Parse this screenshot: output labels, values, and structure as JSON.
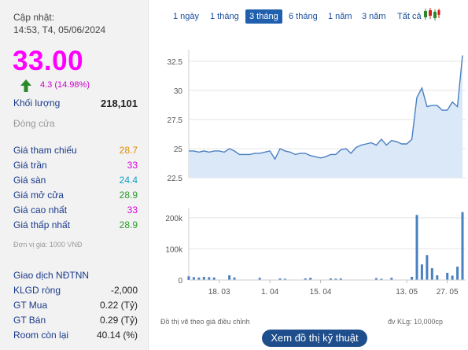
{
  "update": {
    "label": "Cập nhật:",
    "time": "14:53, T4, 05/06/2024"
  },
  "price": {
    "value": "33.00",
    "change": "4.3 (14.98%)",
    "direction": "up",
    "color": "#ff00ff"
  },
  "volume": {
    "label": "Khối lượng",
    "value": "218,101"
  },
  "session_status": "Đóng cửa",
  "stats": [
    {
      "label": "Giá tham chiếu",
      "value": "28.7",
      "color": "#e08a00"
    },
    {
      "label": "Giá trần",
      "value": "33",
      "color": "#dd00dd"
    },
    {
      "label": "Giá sàn",
      "value": "24.4",
      "color": "#0aa0c8"
    },
    {
      "label": "Giá mở cửa",
      "value": "28.9",
      "color": "#2a9a2a"
    },
    {
      "label": "Giá cao nhất",
      "value": "33",
      "color": "#dd00dd"
    },
    {
      "label": "Giá thấp nhất",
      "value": "28.9",
      "color": "#2a9a2a"
    }
  ],
  "unit_note": "Đơn vị giá: 1000 VNĐ",
  "foreign": {
    "title": "Giao dịch NĐTNN",
    "rows": [
      {
        "label": "KLGD ròng",
        "value": "-2,000"
      },
      {
        "label": "GT Mua",
        "value": "0.22 (Tỷ)"
      },
      {
        "label": "GT Bán",
        "value": "0.29 (Tỷ)"
      },
      {
        "label": "Room còn lại",
        "value": "40.14 (%)"
      }
    ]
  },
  "tabs": [
    {
      "label": "1 ngày",
      "active": false
    },
    {
      "label": "1 tháng",
      "active": false
    },
    {
      "label": "3 tháng",
      "active": true
    },
    {
      "label": "6 tháng",
      "active": false
    },
    {
      "label": "1 năm",
      "active": false
    },
    {
      "label": "3 năm",
      "active": false
    },
    {
      "label": "Tất cả",
      "active": false
    }
  ],
  "candle_icon": "candlestick-icon",
  "chart_data": [
    {
      "type": "area",
      "title": "",
      "xlabel": "",
      "ylabel": "",
      "y_ticks": [
        22.5,
        25,
        27.5,
        30,
        32.5
      ],
      "ylim": [
        22.5,
        33.5
      ],
      "grid": true,
      "color": "#4a7fc1",
      "fill": "#dbe8f7",
      "series": [
        {
          "values": [
            24.8,
            24.8,
            24.7,
            24.8,
            24.7,
            24.8,
            24.8,
            24.7,
            25.0,
            24.8,
            24.5,
            24.5,
            24.5,
            24.6,
            24.6,
            24.7,
            24.8,
            24.1,
            25.0,
            24.8,
            24.7,
            24.5,
            24.6,
            24.6,
            24.4,
            24.3,
            24.2,
            24.3,
            24.5,
            24.5,
            24.9,
            25.0,
            24.6,
            25.1,
            25.3,
            25.4,
            25.5,
            25.3,
            25.8,
            25.3,
            25.7,
            25.6,
            25.4,
            25.4,
            25.8,
            29.4,
            30.2,
            28.6,
            28.7,
            28.7,
            28.3,
            28.3,
            29.0,
            28.6,
            33.0
          ]
        }
      ]
    },
    {
      "type": "bar",
      "title": "",
      "y_ticks": [
        0,
        100000,
        200000
      ],
      "y_tick_labels": [
        "0",
        "100k",
        "200k"
      ],
      "ylim": [
        0,
        230000
      ],
      "x_tick_labels": [
        "18. 03",
        "1. 04",
        "15. 04",
        "13. 05",
        "27. 05"
      ],
      "x_tick_index": [
        6,
        16,
        26,
        43,
        51
      ],
      "color": "#4a7fc1",
      "series": [
        {
          "values": [
            12000,
            9000,
            8000,
            10000,
            9000,
            8000,
            0,
            0,
            15000,
            8000,
            0,
            0,
            0,
            0,
            7000,
            0,
            0,
            0,
            5000,
            4000,
            0,
            0,
            0,
            5000,
            7000,
            0,
            0,
            0,
            5000,
            4000,
            5000,
            0,
            0,
            0,
            0,
            0,
            0,
            6000,
            4000,
            0,
            7000,
            0,
            0,
            0,
            10000,
            209000,
            50000,
            80000,
            38000,
            15000,
            0,
            23000,
            14000,
            43000,
            218101
          ]
        }
      ]
    }
  ],
  "footer": {
    "left": "Đồ thị vẽ theo giá điều chỉnh",
    "right": "đv KLg: 10,000cp"
  },
  "tech_button": "Xem đồ thị kỹ thuật"
}
